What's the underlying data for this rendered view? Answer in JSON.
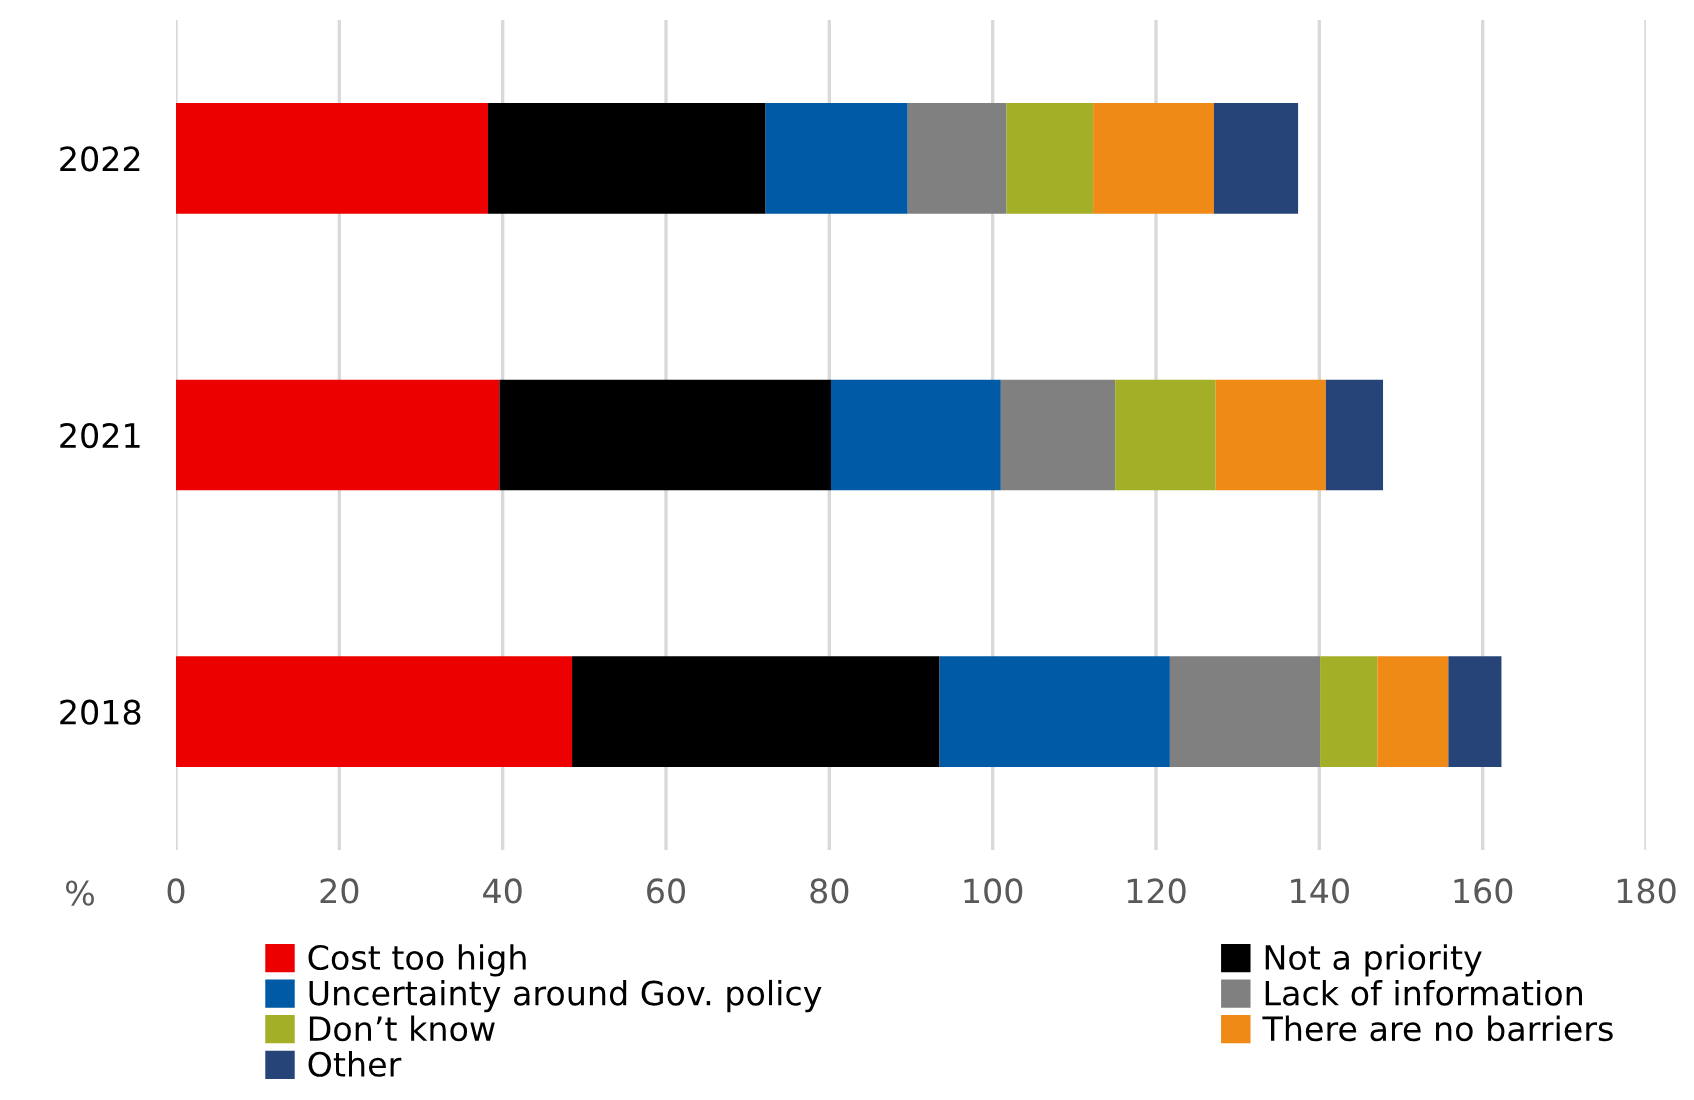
{
  "chart_data": {
    "type": "bar",
    "orientation": "horizontal",
    "stacked": true,
    "xlabel": "%",
    "categories": [
      "2022",
      "2021",
      "2018"
    ],
    "series": [
      {
        "name": "Cost too high",
        "color": "#ec0000",
        "values": [
          38.2,
          39.6,
          48.5
        ]
      },
      {
        "name": "Not a priority",
        "color": "#000000",
        "values": [
          34.0,
          40.6,
          45.0
        ]
      },
      {
        "name": "Uncertainty around Gov. policy",
        "color": "#005aa5",
        "values": [
          17.4,
          20.8,
          28.2
        ]
      },
      {
        "name": "Lack of information",
        "color": "#808080",
        "values": [
          12.1,
          14.0,
          18.4
        ]
      },
      {
        "name": "Don’t know",
        "color": "#a3b027",
        "values": [
          10.6,
          12.3,
          7.0
        ]
      },
      {
        "name": "There are no barriers",
        "color": "#ef8a17",
        "values": [
          14.8,
          13.5,
          8.7
        ]
      },
      {
        "name": "Other",
        "color": "#264478",
        "values": [
          10.3,
          7.0,
          6.5
        ]
      }
    ],
    "xlim": [
      0,
      180
    ],
    "xticks": [
      0,
      20,
      40,
      60,
      80,
      100,
      120,
      140,
      160,
      180
    ],
    "grid": "x",
    "legend": "bottom"
  }
}
